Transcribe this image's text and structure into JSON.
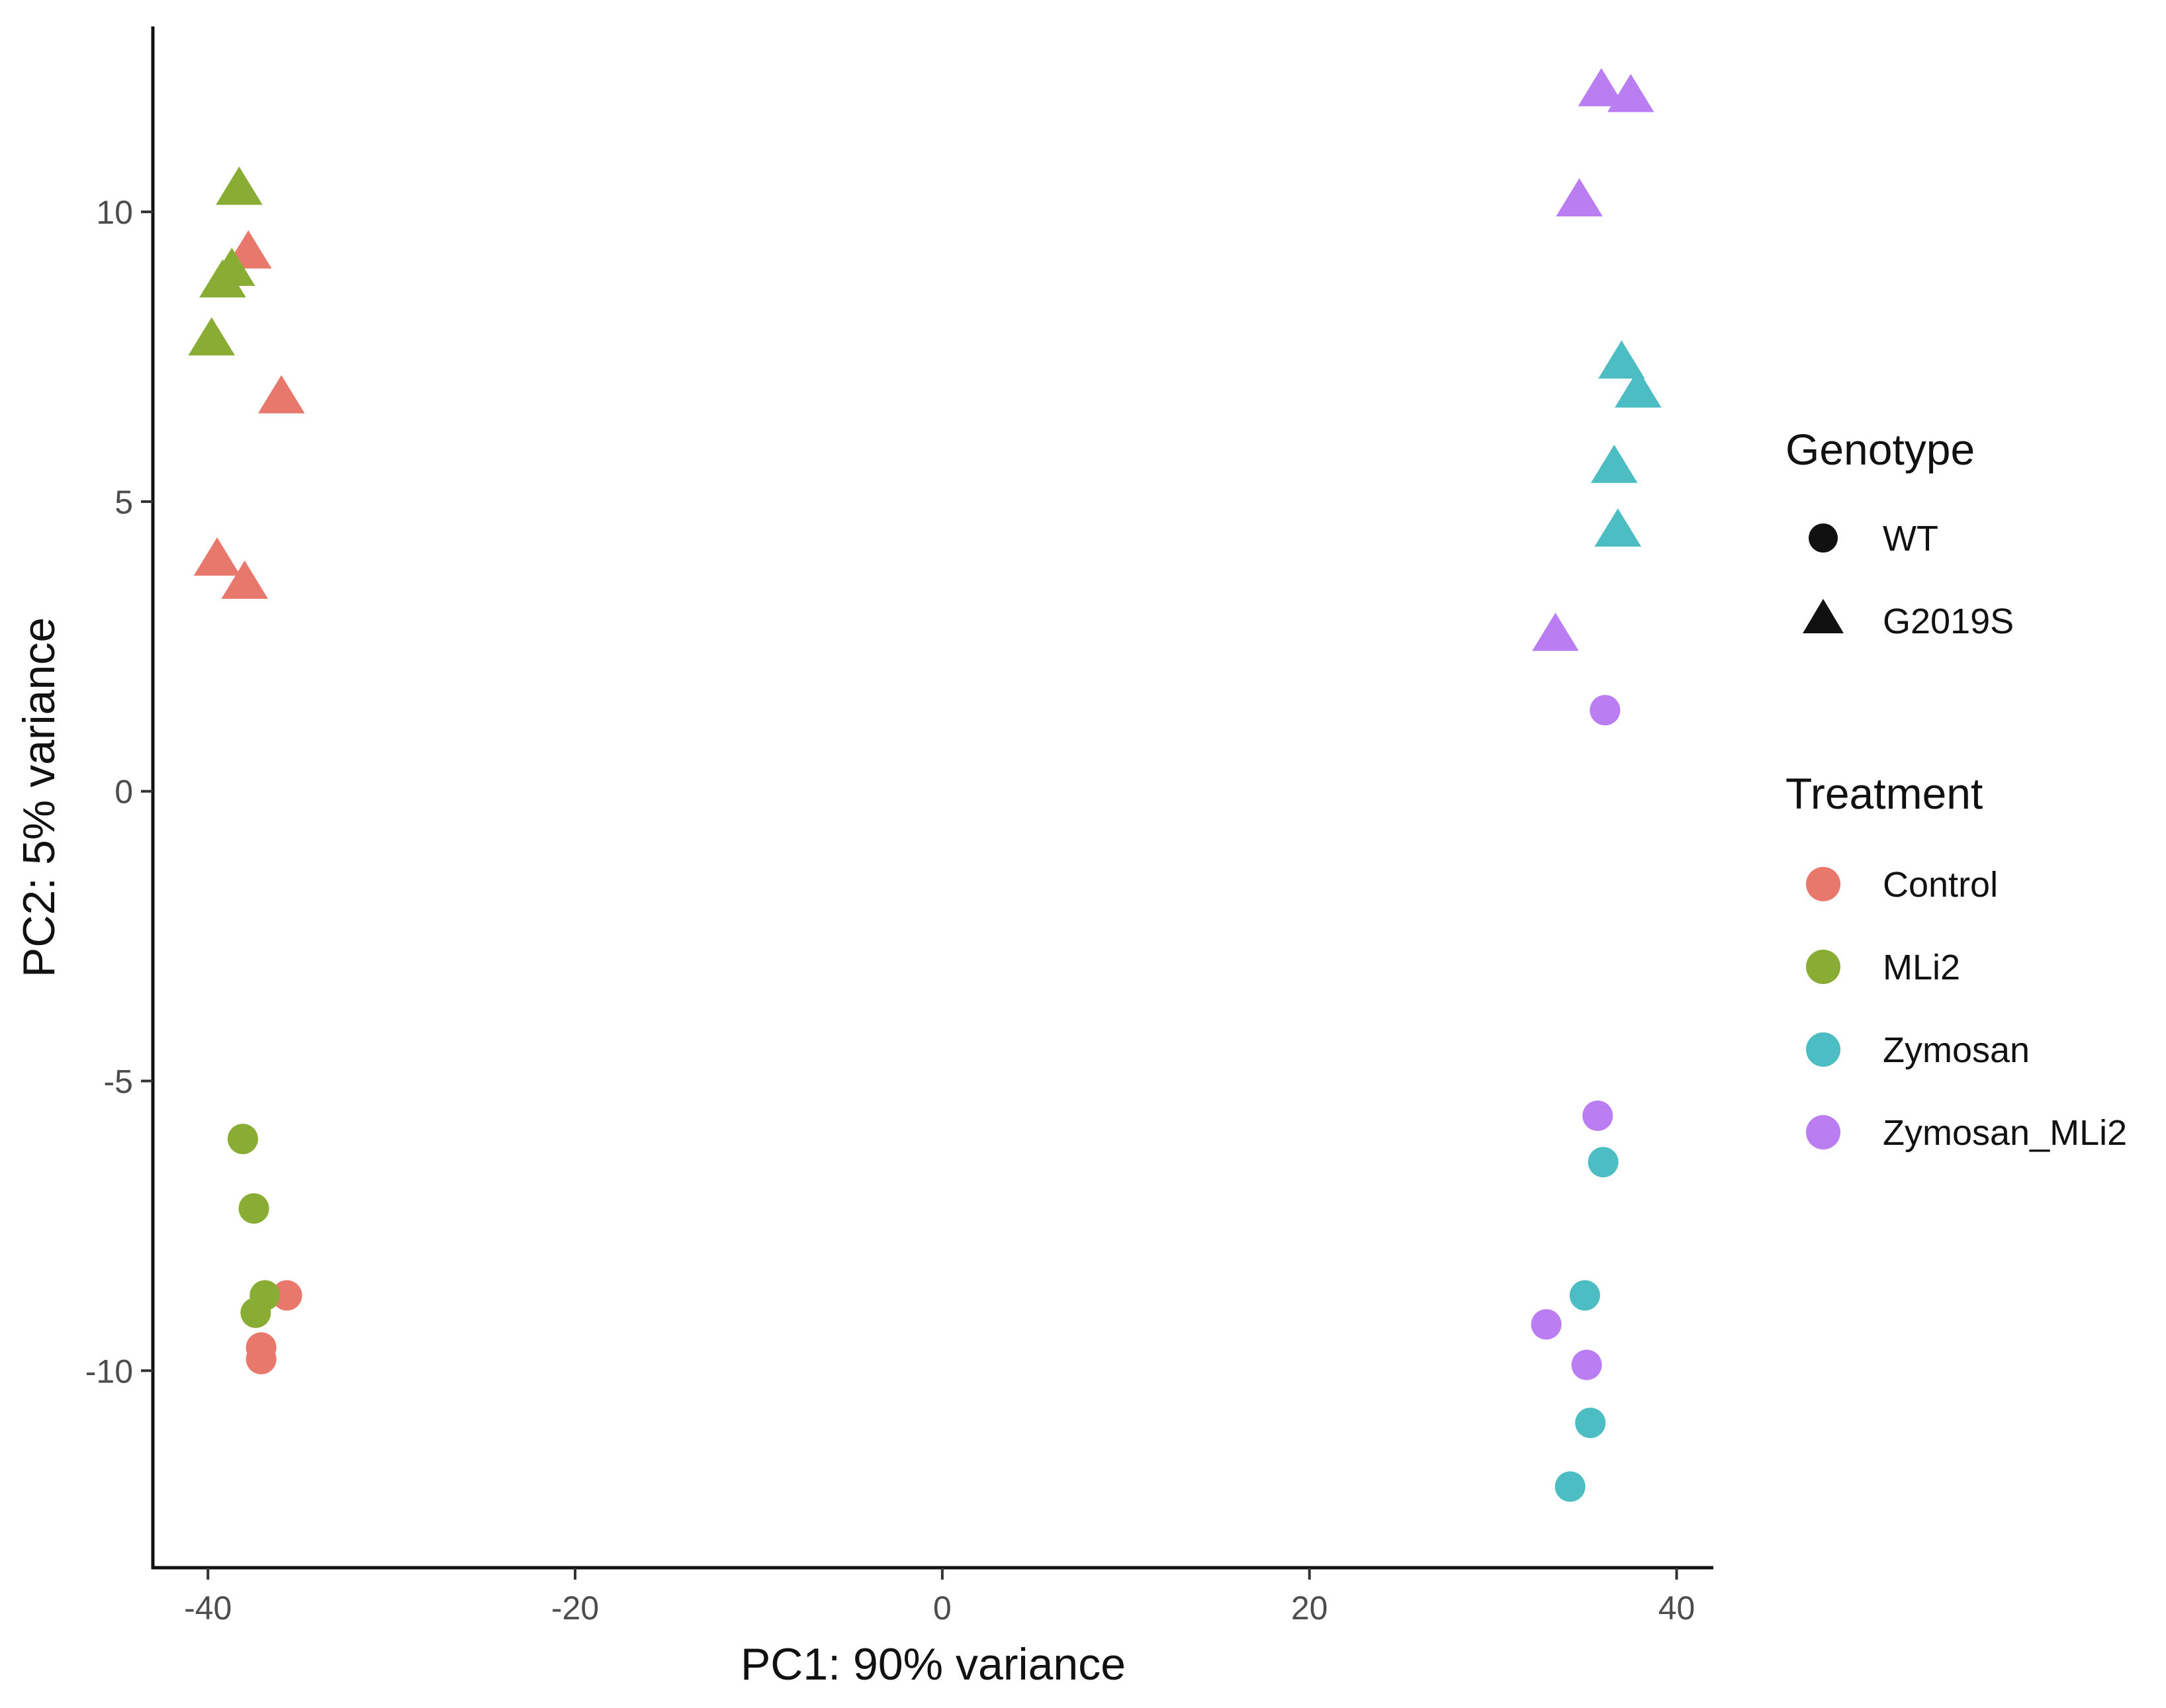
{
  "chart_data": {
    "type": "scatter",
    "title": "",
    "xlabel": "PC1: 90% variance",
    "ylabel": "PC2: 5% variance",
    "xlim": [
      -43,
      42
    ],
    "ylim": [
      -13.4,
      13.2
    ],
    "xticks": [
      -40,
      -20,
      0,
      20,
      40
    ],
    "yticks": [
      -10,
      -5,
      0,
      5,
      10
    ],
    "xtick_labels": [
      "-40",
      "-20",
      "0",
      "20",
      "40"
    ],
    "ytick_labels": [
      "-10",
      "-5",
      "0",
      "5",
      "10"
    ],
    "grid": false,
    "legend_position": "right",
    "legends": {
      "shape": {
        "title": "Genotype",
        "items": [
          {
            "label": "WT",
            "shape": "circle"
          },
          {
            "label": "G2019S",
            "shape": "triangle"
          }
        ]
      },
      "color": {
        "title": "Treatment",
        "items": [
          {
            "label": "Control",
            "color": "#E8786C"
          },
          {
            "label": "MLi2",
            "color": "#88AC34"
          },
          {
            "label": "Zymosan",
            "color": "#4DBDC4"
          },
          {
            "label": "Zymosan_MLi2",
            "color": "#BB7EF2"
          }
        ]
      }
    },
    "series": [
      {
        "name": "Control",
        "color": "#E8786C",
        "points": [
          {
            "x": -37.8,
            "y": 9.3,
            "genotype": "G2019S"
          },
          {
            "x": -36.0,
            "y": 6.8,
            "genotype": "G2019S"
          },
          {
            "x": -39.5,
            "y": 4.0,
            "genotype": "G2019S"
          },
          {
            "x": -38.0,
            "y": 3.6,
            "genotype": "G2019S"
          },
          {
            "x": -35.7,
            "y": -8.7,
            "genotype": "WT"
          },
          {
            "x": -37.1,
            "y": -9.6,
            "genotype": "WT"
          },
          {
            "x": -37.1,
            "y": -9.8,
            "genotype": "WT"
          }
        ]
      },
      {
        "name": "MLi2",
        "color": "#88AC34",
        "points": [
          {
            "x": -38.3,
            "y": 10.4,
            "genotype": "G2019S"
          },
          {
            "x": -38.7,
            "y": 9.0,
            "genotype": "G2019S"
          },
          {
            "x": -39.2,
            "y": 8.8,
            "genotype": "G2019S"
          },
          {
            "x": -39.8,
            "y": 7.8,
            "genotype": "G2019S"
          },
          {
            "x": -38.1,
            "y": -6.0,
            "genotype": "WT"
          },
          {
            "x": -37.5,
            "y": -7.2,
            "genotype": "WT"
          },
          {
            "x": -36.9,
            "y": -8.7,
            "genotype": "WT"
          },
          {
            "x": -37.4,
            "y": -9.0,
            "genotype": "WT"
          }
        ]
      },
      {
        "name": "Zymosan",
        "color": "#4DBDC4",
        "points": [
          {
            "x": 37.0,
            "y": 7.4,
            "genotype": "G2019S"
          },
          {
            "x": 37.9,
            "y": 6.9,
            "genotype": "G2019S"
          },
          {
            "x": 36.6,
            "y": 5.6,
            "genotype": "G2019S"
          },
          {
            "x": 36.8,
            "y": 4.5,
            "genotype": "G2019S"
          },
          {
            "x": 36.0,
            "y": -6.4,
            "genotype": "WT"
          },
          {
            "x": 35.0,
            "y": -8.7,
            "genotype": "WT"
          },
          {
            "x": 35.3,
            "y": -10.9,
            "genotype": "WT"
          },
          {
            "x": 34.2,
            "y": -12.0,
            "genotype": "WT"
          }
        ]
      },
      {
        "name": "Zymosan_MLi2",
        "color": "#BB7EF2",
        "points": [
          {
            "x": 35.9,
            "y": 12.1,
            "genotype": "G2019S"
          },
          {
            "x": 37.5,
            "y": 12.0,
            "genotype": "G2019S"
          },
          {
            "x": 34.7,
            "y": 10.2,
            "genotype": "G2019S"
          },
          {
            "x": 33.4,
            "y": 2.7,
            "genotype": "G2019S"
          },
          {
            "x": 36.1,
            "y": 1.4,
            "genotype": "WT"
          },
          {
            "x": 35.7,
            "y": -5.6,
            "genotype": "WT"
          },
          {
            "x": 32.9,
            "y": -9.2,
            "genotype": "WT"
          },
          {
            "x": 35.1,
            "y": -9.9,
            "genotype": "WT"
          }
        ]
      }
    ]
  }
}
